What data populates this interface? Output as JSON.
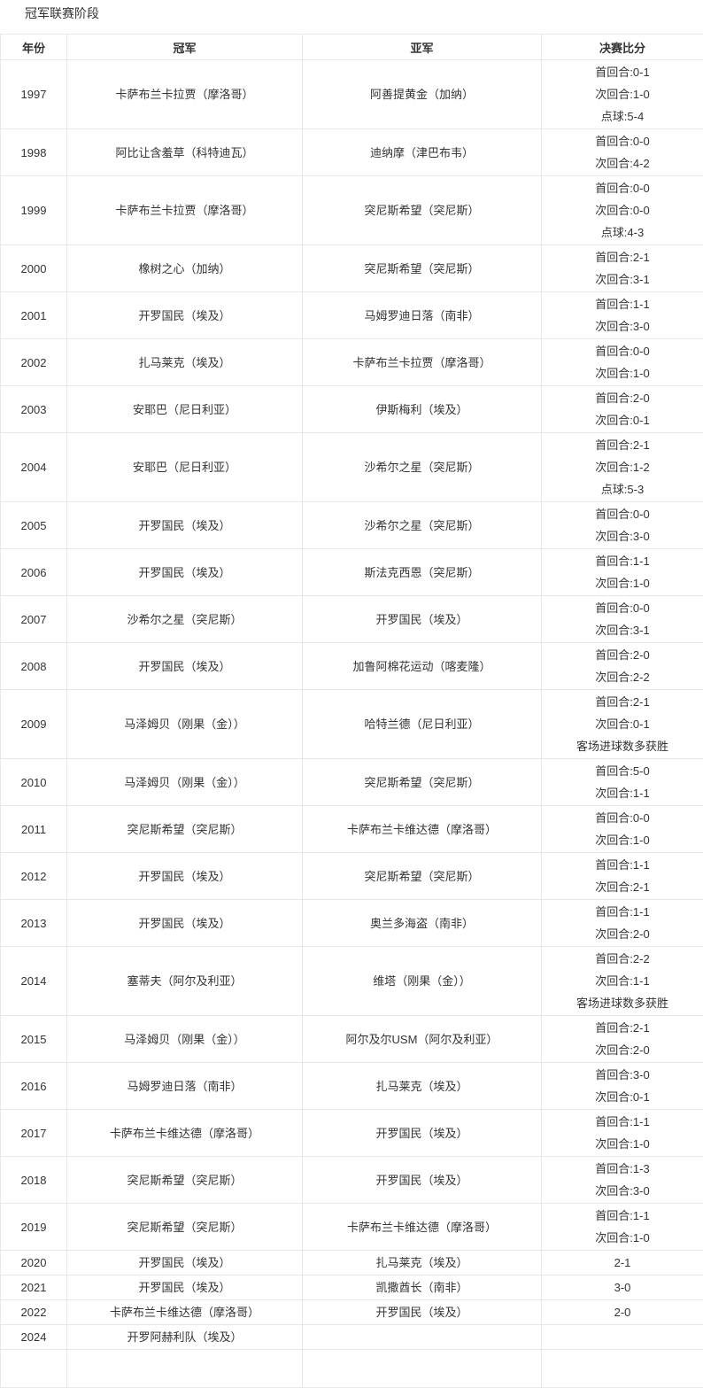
{
  "page": {
    "title": "冠军联赛阶段"
  },
  "colors": {
    "text": "#333333",
    "border": "#e8e8e8",
    "background": "#ffffff"
  },
  "table": {
    "headers": [
      "年份",
      "冠军",
      "亚军",
      "决赛比分"
    ],
    "rows": [
      {
        "year": "1997",
        "champion": "卡萨布兰卡拉贾（摩洛哥）",
        "runner_up": "阿善提黄金（加纳）",
        "score_lines": [
          "首回合:0-1",
          "次回合:1-0",
          "点球:5-4"
        ]
      },
      {
        "year": "1998",
        "champion": "阿比让含羞草（科特迪瓦）",
        "runner_up": "迪纳摩（津巴布韦）",
        "score_lines": [
          "首回合:0-0",
          "次回合:4-2"
        ]
      },
      {
        "year": "1999",
        "champion": "卡萨布兰卡拉贾（摩洛哥）",
        "runner_up": "突尼斯希望（突尼斯）",
        "score_lines": [
          "首回合:0-0",
          "次回合:0-0",
          "点球:4-3"
        ]
      },
      {
        "year": "2000",
        "champion": "橡树之心（加纳）",
        "runner_up": "突尼斯希望（突尼斯）",
        "score_lines": [
          "首回合:2-1",
          "次回合:3-1"
        ]
      },
      {
        "year": "2001",
        "champion": "开罗国民（埃及）",
        "runner_up": "马姆罗迪日落（南非）",
        "score_lines": [
          "首回合:1-1",
          "次回合:3-0"
        ]
      },
      {
        "year": "2002",
        "champion": "扎马莱克（埃及）",
        "runner_up": "卡萨布兰卡拉贾（摩洛哥）",
        "score_lines": [
          "首回合:0-0",
          "次回合:1-0"
        ]
      },
      {
        "year": "2003",
        "champion": "安耶巴（尼日利亚）",
        "runner_up": "伊斯梅利（埃及）",
        "score_lines": [
          "首回合:2-0",
          "次回合:0-1"
        ]
      },
      {
        "year": "2004",
        "champion": "安耶巴（尼日利亚）",
        "runner_up": "沙希尔之星（突尼斯）",
        "score_lines": [
          "首回合:2-1",
          "次回合:1-2",
          "点球:5-3"
        ]
      },
      {
        "year": "2005",
        "champion": "开罗国民（埃及）",
        "runner_up": "沙希尔之星（突尼斯）",
        "score_lines": [
          "首回合:0-0",
          "次回合:3-0"
        ]
      },
      {
        "year": "2006",
        "champion": "开罗国民（埃及）",
        "runner_up": "斯法克西恩（突尼斯）",
        "score_lines": [
          "首回合:1-1",
          "次回合:1-0"
        ]
      },
      {
        "year": "2007",
        "champion": "沙希尔之星（突尼斯）",
        "runner_up": "开罗国民（埃及）",
        "score_lines": [
          "首回合:0-0",
          "次回合:3-1"
        ]
      },
      {
        "year": "2008",
        "champion": "开罗国民（埃及）",
        "runner_up": "加鲁阿棉花运动（喀麦隆）",
        "score_lines": [
          "首回合:2-0",
          "次回合:2-2"
        ]
      },
      {
        "year": "2009",
        "champion": "马泽姆贝（刚果（金））",
        "runner_up": "哈特兰德（尼日利亚）",
        "score_lines": [
          "首回合:2-1",
          "次回合:0-1",
          "客场进球数多获胜"
        ]
      },
      {
        "year": "2010",
        "champion": "马泽姆贝（刚果（金））",
        "runner_up": "突尼斯希望（突尼斯）",
        "score_lines": [
          "首回合:5-0",
          "次回合:1-1"
        ]
      },
      {
        "year": "2011",
        "champion": "突尼斯希望（突尼斯）",
        "runner_up": "卡萨布兰卡维达德（摩洛哥）",
        "score_lines": [
          "首回合:0-0",
          "次回合:1-0"
        ]
      },
      {
        "year": "2012",
        "champion": "开罗国民（埃及）",
        "runner_up": "突尼斯希望（突尼斯）",
        "score_lines": [
          "首回合:1-1",
          "次回合:2-1"
        ]
      },
      {
        "year": "2013",
        "champion": "开罗国民（埃及）",
        "runner_up": "奥兰多海盗（南非）",
        "score_lines": [
          "首回合:1-1",
          "次回合:2-0"
        ]
      },
      {
        "year": "2014",
        "champion": "塞蒂夫（阿尔及利亚）",
        "runner_up": "维塔（刚果（金））",
        "score_lines": [
          "首回合:2-2",
          "次回合:1-1",
          "客场进球数多获胜"
        ]
      },
      {
        "year": "2015",
        "champion": "马泽姆贝（刚果（金））",
        "runner_up": "阿尔及尔USM（阿尔及利亚）",
        "score_lines": [
          "首回合:2-1",
          "次回合:2-0"
        ]
      },
      {
        "year": "2016",
        "champion": "马姆罗迪日落（南非）",
        "runner_up": "扎马莱克（埃及）",
        "score_lines": [
          "首回合:3-0",
          "次回合:0-1"
        ]
      },
      {
        "year": "2017",
        "champion": "卡萨布兰卡维达德（摩洛哥）",
        "runner_up": "开罗国民（埃及）",
        "score_lines": [
          "首回合:1-1",
          "次回合:1-0"
        ]
      },
      {
        "year": "2018",
        "champion": "突尼斯希望（突尼斯）",
        "runner_up": "开罗国民（埃及）",
        "score_lines": [
          "首回合:1-3",
          "次回合:3-0"
        ]
      },
      {
        "year": "2019",
        "champion": "突尼斯希望（突尼斯）",
        "runner_up": "卡萨布兰卡维达德（摩洛哥）",
        "score_lines": [
          "首回合:1-1",
          "次回合:1-0"
        ]
      },
      {
        "year": "2020",
        "champion": "开罗国民（埃及）",
        "runner_up": "扎马莱克（埃及）",
        "score_lines": [
          "2-1"
        ]
      },
      {
        "year": "2021",
        "champion": "开罗国民（埃及）",
        "runner_up": "凯撒酋长（南非）",
        "score_lines": [
          "3-0"
        ]
      },
      {
        "year": "2022",
        "champion": "卡萨布兰卡维达德（摩洛哥）",
        "runner_up": "开罗国民（埃及）",
        "score_lines": [
          "2-0"
        ]
      },
      {
        "year": "2024",
        "champion": "开罗阿赫利队（埃及）",
        "runner_up": "",
        "score_lines": []
      }
    ]
  }
}
